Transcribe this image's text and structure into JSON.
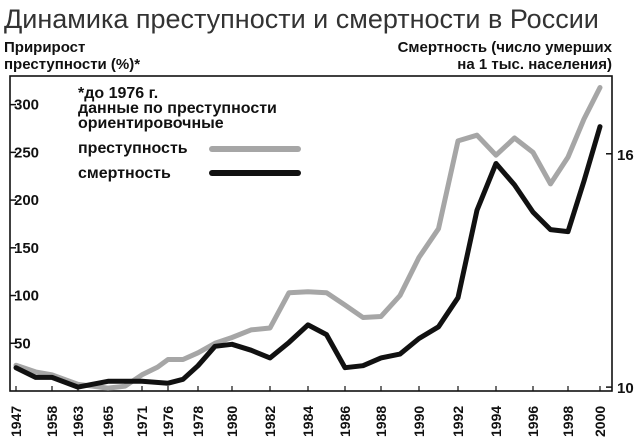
{
  "chart_data": {
    "type": "line",
    "title": "Динамика преступности и смертности в России",
    "ylabel_left": "Пририрост преступности (%)*",
    "ylabel_right": "Смертность (число умерших на 1 тыс. населения)",
    "note": [
      "*до 1976 г.",
      "данные по преступности",
      "ориентировочные"
    ],
    "x_ticks": [
      "1947",
      "1958",
      "1963",
      "1965",
      "1971",
      "1976",
      "1978",
      "1980",
      "1982",
      "1984",
      "1986",
      "1988",
      "1990",
      "1992",
      "1994",
      "1996",
      "1998",
      "2000"
    ],
    "y_left_ticks": [
      50,
      100,
      150,
      200,
      250,
      300
    ],
    "y_left_range": [
      0,
      330
    ],
    "y_right_ticks": [
      10,
      16
    ],
    "y_right_range": [
      9.9,
      18.0
    ],
    "grid": false,
    "legend_position": "top-left",
    "series": [
      {
        "name": "преступность",
        "axis": "left",
        "color": "#a6a6a6",
        "points": [
          {
            "x": 1947,
            "y": 27
          },
          {
            "x": 1953,
            "y": 20
          },
          {
            "x": 1958,
            "y": 17
          },
          {
            "x": 1963,
            "y": 7
          },
          {
            "x": 1965,
            "y": 3
          },
          {
            "x": 1968,
            "y": 5
          },
          {
            "x": 1971,
            "y": 17
          },
          {
            "x": 1974,
            "y": 25
          },
          {
            "x": 1976,
            "y": 33
          },
          {
            "x": 1977,
            "y": 33
          },
          {
            "x": 1978,
            "y": 40
          },
          {
            "x": 1979,
            "y": 50
          },
          {
            "x": 1980,
            "y": 56
          },
          {
            "x": 1981,
            "y": 64
          },
          {
            "x": 1982,
            "y": 66
          },
          {
            "x": 1983,
            "y": 103
          },
          {
            "x": 1984,
            "y": 104
          },
          {
            "x": 1985,
            "y": 103
          },
          {
            "x": 1986,
            "y": 90
          },
          {
            "x": 1987,
            "y": 77
          },
          {
            "x": 1988,
            "y": 78
          },
          {
            "x": 1989,
            "y": 100
          },
          {
            "x": 1990,
            "y": 140
          },
          {
            "x": 1991,
            "y": 170
          },
          {
            "x": 1992,
            "y": 262
          },
          {
            "x": 1993,
            "y": 268
          },
          {
            "x": 1994,
            "y": 247
          },
          {
            "x": 1995,
            "y": 265
          },
          {
            "x": 1996,
            "y": 250
          },
          {
            "x": 1997,
            "y": 217
          },
          {
            "x": 1998,
            "y": 245
          },
          {
            "x": 1999,
            "y": 285
          },
          {
            "x": 2000,
            "y": 318
          }
        ]
      },
      {
        "name": "смертность",
        "axis": "right",
        "color": "#111111",
        "points": [
          {
            "x": 1947,
            "y": 10.5
          },
          {
            "x": 1953,
            "y": 10.25
          },
          {
            "x": 1958,
            "y": 10.25
          },
          {
            "x": 1963,
            "y": 10.0
          },
          {
            "x": 1965,
            "y": 10.15
          },
          {
            "x": 1971,
            "y": 10.15
          },
          {
            "x": 1976,
            "y": 10.1
          },
          {
            "x": 1977,
            "y": 10.2
          },
          {
            "x": 1978,
            "y": 10.55
          },
          {
            "x": 1979,
            "y": 11.05
          },
          {
            "x": 1980,
            "y": 11.1
          },
          {
            "x": 1981,
            "y": 10.95
          },
          {
            "x": 1982,
            "y": 10.75
          },
          {
            "x": 1983,
            "y": 11.15
          },
          {
            "x": 1984,
            "y": 11.6
          },
          {
            "x": 1985,
            "y": 11.35
          },
          {
            "x": 1986,
            "y": 10.5
          },
          {
            "x": 1987,
            "y": 10.55
          },
          {
            "x": 1988,
            "y": 10.75
          },
          {
            "x": 1989,
            "y": 10.85
          },
          {
            "x": 1990,
            "y": 11.25
          },
          {
            "x": 1991,
            "y": 11.55
          },
          {
            "x": 1992,
            "y": 12.3
          },
          {
            "x": 1993,
            "y": 14.55
          },
          {
            "x": 1994,
            "y": 15.75
          },
          {
            "x": 1995,
            "y": 15.2
          },
          {
            "x": 1996,
            "y": 14.5
          },
          {
            "x": 1997,
            "y": 14.05
          },
          {
            "x": 1998,
            "y": 14.0
          },
          {
            "x": 1999,
            "y": 15.3
          },
          {
            "x": 2000,
            "y": 16.7
          }
        ]
      }
    ]
  }
}
